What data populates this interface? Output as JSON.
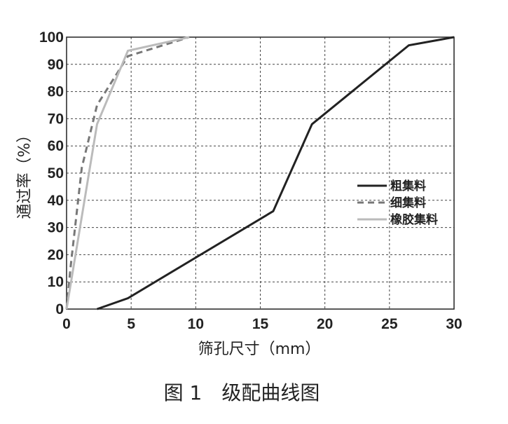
{
  "chart_data": {
    "type": "line",
    "title": "图 1　级配曲线图",
    "x_label": "筛孔尺寸（mm）",
    "y_label": "通过率（%）",
    "xlim": [
      0,
      30
    ],
    "ylim": [
      0,
      100
    ],
    "xticks": [
      0,
      5,
      10,
      15,
      20,
      25,
      30
    ],
    "yticks": [
      0,
      10,
      20,
      30,
      40,
      50,
      60,
      70,
      80,
      90,
      100
    ],
    "grid": true,
    "legend": "right",
    "series": [
      {
        "name": "粗集料",
        "color": "#222222",
        "dash": false,
        "x": [
          2.36,
          4.75,
          16,
          19,
          26.5,
          30
        ],
        "values": [
          0,
          4,
          36,
          68,
          97,
          100
        ]
      },
      {
        "name": "细集料",
        "color": "#777777",
        "dash": true,
        "x": [
          0,
          0.3,
          1.18,
          2.36,
          4.75,
          9.5
        ],
        "values": [
          0,
          15,
          52,
          75,
          93,
          100
        ]
      },
      {
        "name": "橡胶集料",
        "color": "#bbbbbb",
        "dash": false,
        "x": [
          0,
          2.36,
          4.75,
          9.5
        ],
        "values": [
          0,
          68,
          95,
          100
        ]
      }
    ]
  }
}
